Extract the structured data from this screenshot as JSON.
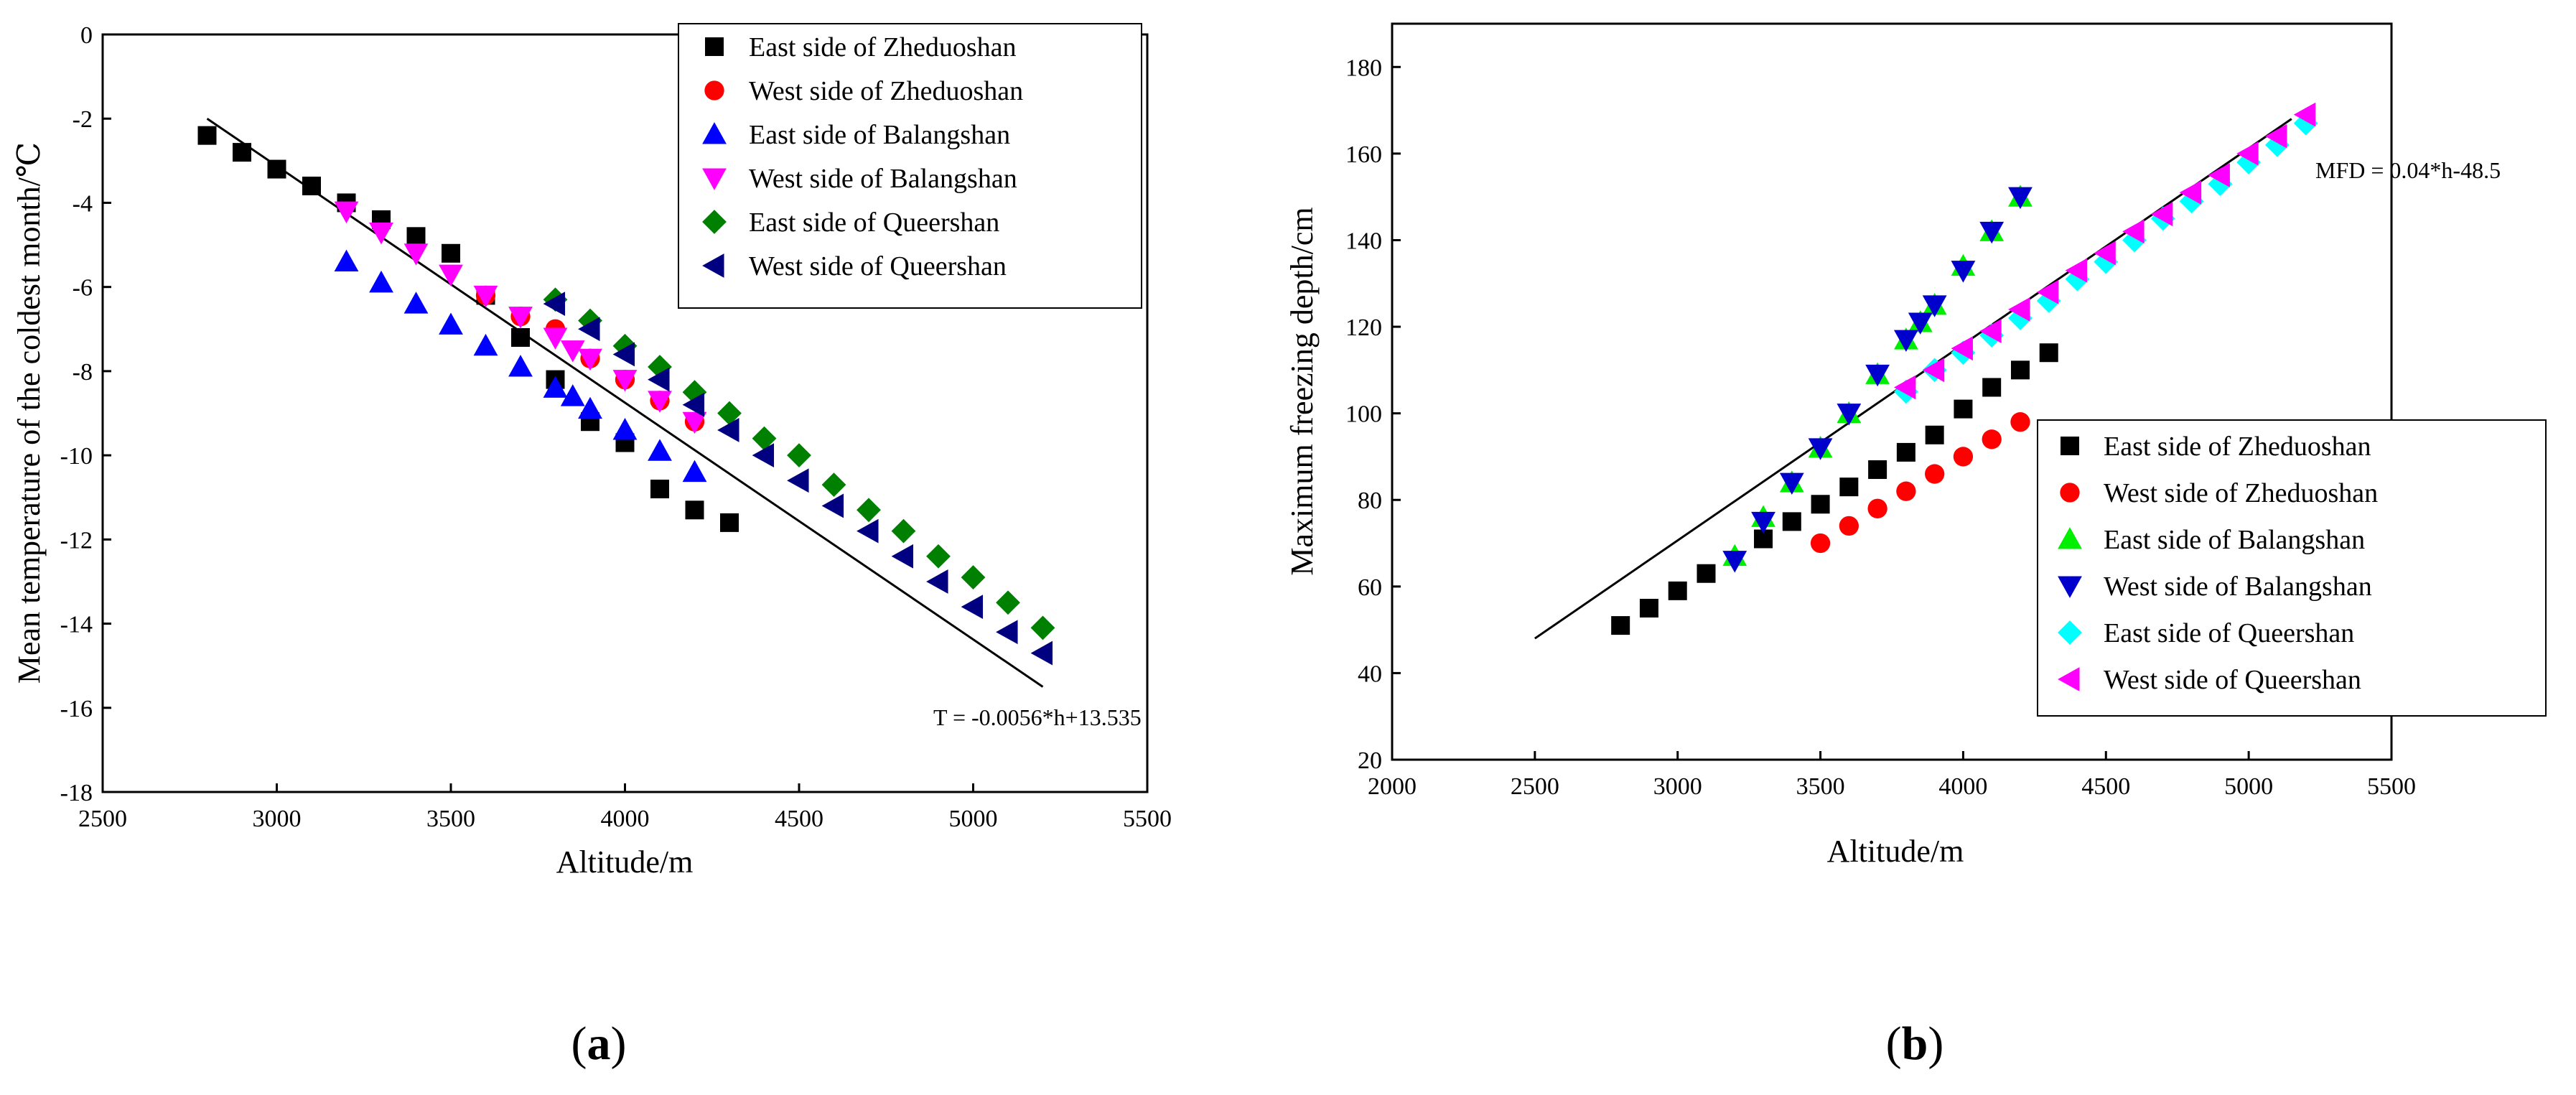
{
  "chart_data": [
    {
      "type": "scatter",
      "panel_label": "(a)",
      "panel_letter": "a",
      "xlabel": "Altitude/m",
      "ylabel": "Mean temperature of the coldest month/℃",
      "xlim": [
        2500,
        5500
      ],
      "ylim": [
        -18,
        0
      ],
      "xticks": [
        2500,
        3000,
        3500,
        4000,
        4500,
        5000,
        5500
      ],
      "yticks": [
        0,
        -2,
        -4,
        -6,
        -8,
        -10,
        -12,
        -14,
        -16,
        -18
      ],
      "legend_position": "top-right",
      "fit_label": "T = -0.0056*h+13.535",
      "fit_line": {
        "x": [
          2800,
          5200
        ],
        "y": [
          -2.0,
          -15.5
        ]
      },
      "series": [
        {
          "name": "East side of Zheduoshan",
          "marker": "square",
          "color": "#000000",
          "x": [
            2800,
            2900,
            3000,
            3100,
            3200,
            3300,
            3400,
            3500,
            3600,
            3700,
            3800,
            3900,
            4000,
            4100,
            4200,
            4300
          ],
          "y": [
            -2.4,
            -2.8,
            -3.2,
            -3.6,
            -4.0,
            -4.4,
            -4.8,
            -5.2,
            -6.2,
            -7.2,
            -8.2,
            -9.2,
            -9.7,
            -10.8,
            -11.3,
            -11.6
          ]
        },
        {
          "name": "West side of Zheduoshan",
          "marker": "circle",
          "color": "#ff0000",
          "x": [
            3600,
            3700,
            3800,
            3900,
            4000,
            4100,
            4200
          ],
          "y": [
            -6.2,
            -6.7,
            -7.0,
            -7.7,
            -8.2,
            -8.7,
            -9.2
          ]
        },
        {
          "name": "East side of Balangshan",
          "marker": "triangle-up",
          "color": "#0000ff",
          "x": [
            3200,
            3300,
            3400,
            3500,
            3600,
            3700,
            3800,
            3850,
            3900,
            4000,
            4100,
            4200
          ],
          "y": [
            -5.4,
            -5.9,
            -6.4,
            -6.9,
            -7.4,
            -7.9,
            -8.4,
            -8.6,
            -8.9,
            -9.4,
            -9.9,
            -10.4
          ]
        },
        {
          "name": "West side of Balangshan",
          "marker": "triangle-down",
          "color": "#ff00ff",
          "x": [
            3200,
            3300,
            3400,
            3500,
            3600,
            3700,
            3800,
            3850,
            3900,
            4000,
            4100,
            4200
          ],
          "y": [
            -4.2,
            -4.7,
            -5.2,
            -5.7,
            -6.2,
            -6.7,
            -7.2,
            -7.5,
            -7.7,
            -8.2,
            -8.7,
            -9.2
          ]
        },
        {
          "name": "East side of Queershan",
          "marker": "diamond",
          "color": "#008000",
          "x": [
            3800,
            3900,
            4000,
            4100,
            4200,
            4300,
            4400,
            4500,
            4600,
            4700,
            4800,
            4900,
            5000,
            5100,
            5200
          ],
          "y": [
            -6.3,
            -6.8,
            -7.4,
            -7.9,
            -8.5,
            -9.0,
            -9.6,
            -10.0,
            -10.7,
            -11.3,
            -11.8,
            -12.4,
            -12.9,
            -13.5,
            -14.1
          ]
        },
        {
          "name": "West side of Queershan",
          "marker": "triangle-left",
          "color": "#000080",
          "x": [
            3800,
            3900,
            4000,
            4100,
            4200,
            4300,
            4400,
            4500,
            4600,
            4700,
            4800,
            4900,
            5000,
            5100,
            5200
          ],
          "y": [
            -6.4,
            -7.0,
            -7.6,
            -8.2,
            -8.8,
            -9.4,
            -10.0,
            -10.6,
            -11.2,
            -11.8,
            -12.4,
            -13.0,
            -13.6,
            -14.2,
            -14.7
          ]
        }
      ]
    },
    {
      "type": "scatter",
      "panel_label": "(b)",
      "panel_letter": "b",
      "xlabel": "Altitude/m",
      "ylabel": "Maximum freezing depth/cm",
      "xlim": [
        2000,
        5500
      ],
      "ylim": [
        20,
        190
      ],
      "xticks": [
        2000,
        2500,
        3000,
        3500,
        4000,
        4500,
        5000,
        5500
      ],
      "yticks": [
        20,
        40,
        60,
        80,
        100,
        120,
        140,
        160,
        180
      ],
      "legend_position": "bottom-right",
      "fit_label": "MFD = 0.04*h-48.5",
      "fit_line": {
        "x": [
          2500,
          5150
        ],
        "y": [
          48,
          168
        ]
      },
      "series": [
        {
          "name": "East side of Zheduoshan",
          "marker": "square",
          "color": "#000000",
          "x": [
            2800,
            2900,
            3000,
            3100,
            3300,
            3400,
            3500,
            3600,
            3700,
            3800,
            3900,
            4000,
            4100,
            4200,
            4300
          ],
          "y": [
            51,
            55,
            59,
            63,
            71,
            75,
            79,
            83,
            87,
            91,
            95,
            101,
            106,
            110,
            114
          ]
        },
        {
          "name": "West side of Zheduoshan",
          "marker": "circle",
          "color": "#ff0000",
          "x": [
            3500,
            3600,
            3700,
            3800,
            3900,
            4000,
            4100,
            4200
          ],
          "y": [
            70,
            74,
            78,
            82,
            86,
            90,
            94,
            98
          ]
        },
        {
          "name": "East side of Balangshan",
          "marker": "triangle-up",
          "color": "#00ee00",
          "x": [
            3200,
            3300,
            3400,
            3500,
            3600,
            3700,
            3800,
            3850,
            3900,
            4000,
            4100,
            4200
          ],
          "y": [
            67,
            76,
            84,
            92,
            100,
            109,
            117,
            121,
            125,
            134,
            142,
            150
          ]
        },
        {
          "name": "West side of Balangshan",
          "marker": "triangle-down",
          "color": "#0000cc",
          "x": [
            3200,
            3300,
            3400,
            3500,
            3600,
            3700,
            3800,
            3850,
            3900,
            4000,
            4100,
            4200
          ],
          "y": [
            66,
            75,
            84,
            92,
            100,
            109,
            117,
            121,
            125,
            133,
            142,
            150
          ]
        },
        {
          "name": "East side of Queershan",
          "marker": "diamond",
          "color": "#00ffff",
          "x": [
            3800,
            3900,
            4000,
            4100,
            4200,
            4300,
            4400,
            4500,
            4600,
            4700,
            4800,
            4900,
            5000,
            5100,
            5200
          ],
          "y": [
            105,
            110,
            114,
            118,
            122,
            126,
            131,
            135,
            140,
            145,
            149,
            153,
            158,
            162,
            167
          ]
        },
        {
          "name": "West side of Queershan",
          "marker": "triangle-left",
          "color": "#ff00ff",
          "x": [
            3800,
            3900,
            4000,
            4100,
            4200,
            4300,
            4400,
            4500,
            4600,
            4700,
            4800,
            4900,
            5000,
            5100,
            5200
          ],
          "y": [
            106,
            110,
            115,
            119,
            124,
            128,
            133,
            137,
            142,
            146,
            151,
            155,
            160,
            164,
            169
          ]
        }
      ]
    }
  ]
}
